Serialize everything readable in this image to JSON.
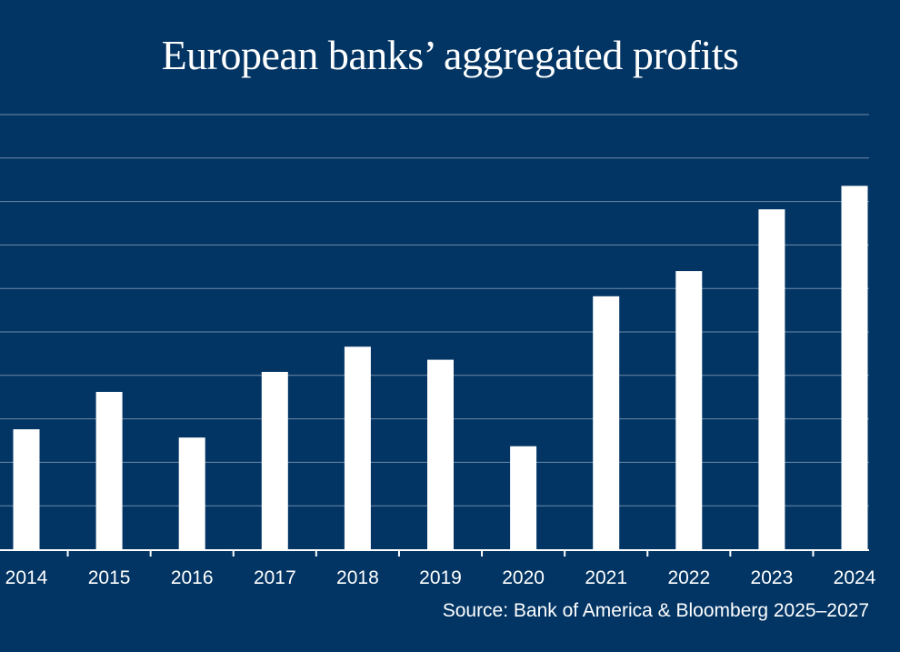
{
  "chart_data": {
    "type": "bar",
    "title": "European banks’ aggregated profits",
    "source": "Source: Bank of America & Bloomberg 2025–2027",
    "categories": [
      "2014",
      "2015",
      "2016",
      "2017",
      "2018",
      "2019",
      "2020",
      "2021",
      "2022",
      "2023",
      "2024"
    ],
    "values": [
      27.6,
      36.2,
      25.7,
      40.8,
      46.6,
      43.6,
      23.7,
      58.2,
      64.0,
      78.2,
      83.6
    ],
    "ylim": [
      0,
      100
    ],
    "grid": true,
    "bar_color": "#ffffff",
    "background_color": "#023564",
    "grid_color": "#6e8aa8"
  }
}
